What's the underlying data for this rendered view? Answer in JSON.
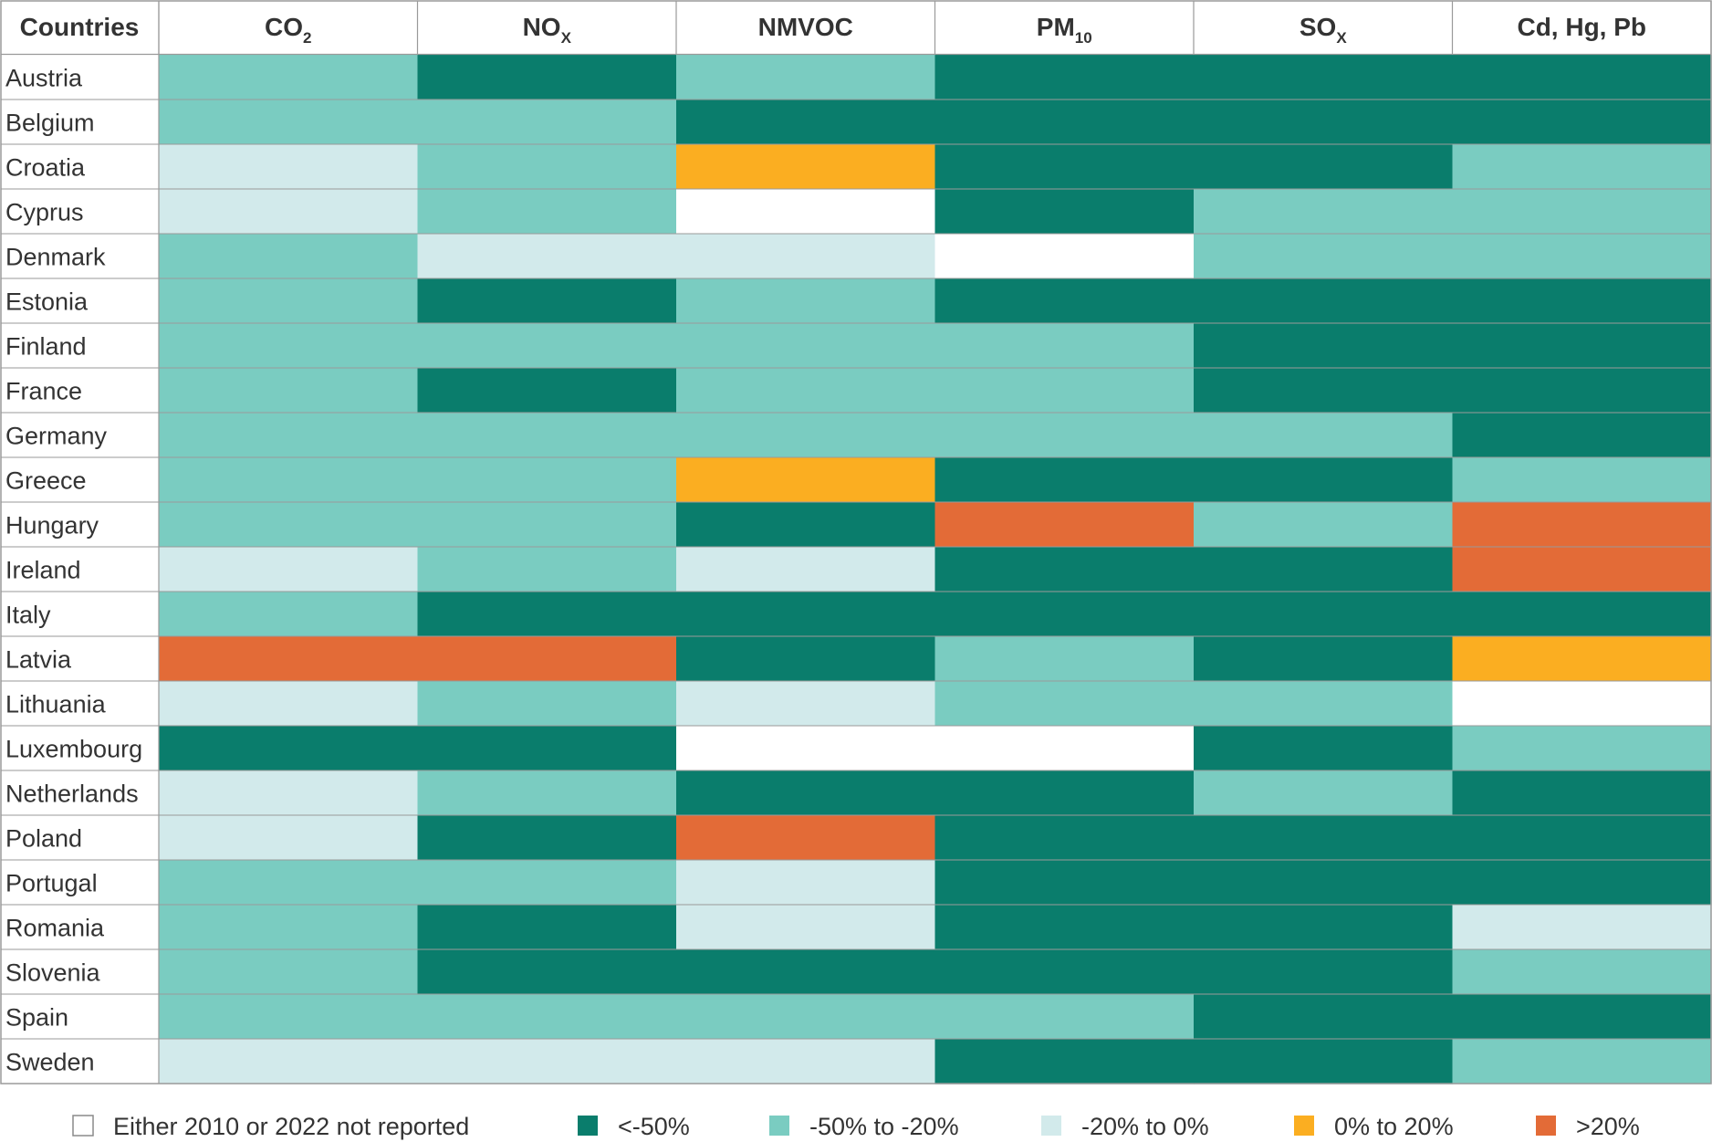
{
  "chart_data": {
    "type": "heatmap",
    "corner_header": "Countries",
    "columns": [
      {
        "base": "CO",
        "sub": "2"
      },
      {
        "base": "NO",
        "sub": "X"
      },
      {
        "base": "NMVOC",
        "sub": ""
      },
      {
        "base": "PM",
        "sub": "10"
      },
      {
        "base": "SO",
        "sub": "X"
      },
      {
        "base": "Cd, Hg, Pb",
        "sub": ""
      }
    ],
    "categories": [
      {
        "key": "nr",
        "label": "Either 2010 or 2022 not reported",
        "color": "#ffffff"
      },
      {
        "key": "lt50",
        "label": "<-50%",
        "color": "#0a7d6c"
      },
      {
        "key": "m50m20",
        "label": "-50% to -20%",
        "color": "#7accc1"
      },
      {
        "key": "m20z",
        "label": "-20% to 0%",
        "color": "#d2eaeb"
      },
      {
        "key": "z20",
        "label": "0% to 20%",
        "color": "#fbae21"
      },
      {
        "key": "gt20",
        "label": ">20%",
        "color": "#e36b37"
      }
    ],
    "rows": [
      {
        "country": "Austria",
        "values": [
          "m50m20",
          "lt50",
          "m50m20",
          "lt50",
          "lt50",
          "lt50"
        ]
      },
      {
        "country": "Belgium",
        "values": [
          "m50m20",
          "m50m20",
          "lt50",
          "lt50",
          "lt50",
          "lt50"
        ]
      },
      {
        "country": "Croatia",
        "values": [
          "m20z",
          "m50m20",
          "z20",
          "lt50",
          "lt50",
          "m50m20"
        ]
      },
      {
        "country": "Cyprus",
        "values": [
          "m20z",
          "m50m20",
          "nr",
          "lt50",
          "m50m20",
          "m50m20"
        ]
      },
      {
        "country": "Denmark",
        "values": [
          "m50m20",
          "m20z",
          "m20z",
          "nr",
          "m50m20",
          "m50m20"
        ]
      },
      {
        "country": "Estonia",
        "values": [
          "m50m20",
          "lt50",
          "m50m20",
          "lt50",
          "lt50",
          "lt50"
        ]
      },
      {
        "country": "Finland",
        "values": [
          "m50m20",
          "m50m20",
          "m50m20",
          "m50m20",
          "lt50",
          "lt50"
        ]
      },
      {
        "country": "France",
        "values": [
          "m50m20",
          "lt50",
          "m50m20",
          "m50m20",
          "lt50",
          "lt50"
        ]
      },
      {
        "country": "Germany",
        "values": [
          "m50m20",
          "m50m20",
          "m50m20",
          "m50m20",
          "m50m20",
          "lt50"
        ]
      },
      {
        "country": "Greece",
        "values": [
          "m50m20",
          "m50m20",
          "z20",
          "lt50",
          "lt50",
          "m50m20"
        ]
      },
      {
        "country": "Hungary",
        "values": [
          "m50m20",
          "m50m20",
          "lt50",
          "gt20",
          "m50m20",
          "gt20"
        ]
      },
      {
        "country": "Ireland",
        "values": [
          "m20z",
          "m50m20",
          "m20z",
          "lt50",
          "lt50",
          "gt20"
        ]
      },
      {
        "country": "Italy",
        "values": [
          "m50m20",
          "lt50",
          "lt50",
          "lt50",
          "lt50",
          "lt50"
        ]
      },
      {
        "country": "Latvia",
        "values": [
          "gt20",
          "gt20",
          "lt50",
          "m50m20",
          "lt50",
          "z20"
        ]
      },
      {
        "country": "Lithuania",
        "values": [
          "m20z",
          "m50m20",
          "m20z",
          "m50m20",
          "m50m20",
          "nr"
        ]
      },
      {
        "country": "Luxembourg",
        "values": [
          "lt50",
          "lt50",
          "nr",
          "nr",
          "lt50",
          "m50m20"
        ]
      },
      {
        "country": "Netherlands",
        "values": [
          "m20z",
          "m50m20",
          "lt50",
          "lt50",
          "m50m20",
          "lt50"
        ]
      },
      {
        "country": "Poland",
        "values": [
          "m20z",
          "lt50",
          "gt20",
          "lt50",
          "lt50",
          "lt50"
        ]
      },
      {
        "country": "Portugal",
        "values": [
          "m50m20",
          "m50m20",
          "m20z",
          "lt50",
          "lt50",
          "lt50"
        ]
      },
      {
        "country": "Romania",
        "values": [
          "m50m20",
          "lt50",
          "m20z",
          "lt50",
          "lt50",
          "m20z"
        ]
      },
      {
        "country": "Slovenia",
        "values": [
          "m50m20",
          "lt50",
          "lt50",
          "lt50",
          "lt50",
          "m50m20"
        ]
      },
      {
        "country": "Spain",
        "values": [
          "m50m20",
          "m50m20",
          "m50m20",
          "m50m20",
          "lt50",
          "lt50"
        ]
      },
      {
        "country": "Sweden",
        "values": [
          "m20z",
          "m20z",
          "m20z",
          "lt50",
          "lt50",
          "m50m20"
        ]
      }
    ]
  }
}
